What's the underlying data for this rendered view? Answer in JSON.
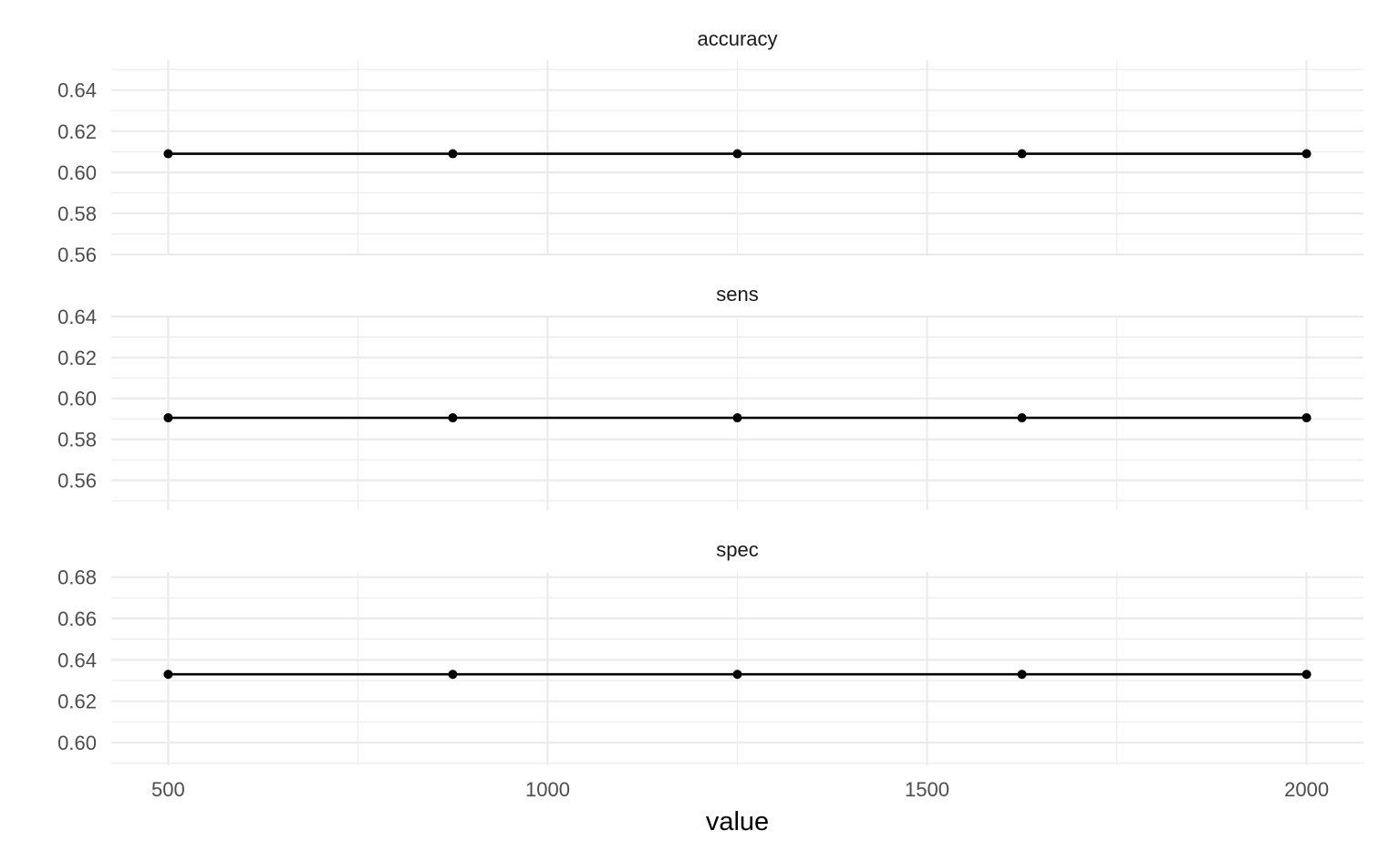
{
  "chart_data": {
    "type": "line",
    "xlabel": "value",
    "x_ticks": [
      500,
      1000,
      1500,
      2000
    ],
    "xlim": [
      425,
      2075
    ],
    "x": [
      500,
      875,
      1250,
      1625,
      2000
    ],
    "panels": [
      {
        "title": "accuracy",
        "y_ticks": [
          "0.56",
          "0.58",
          "0.60",
          "0.62",
          "0.64"
        ],
        "ylim": [
          0.56,
          0.6545
        ],
        "values": [
          0.609,
          0.609,
          0.609,
          0.609,
          0.609
        ]
      },
      {
        "title": "sens",
        "y_ticks": [
          "0.56",
          "0.58",
          "0.60",
          "0.62",
          "0.64"
        ],
        "ylim": [
          0.5455,
          0.64
        ],
        "values": [
          0.5905,
          0.5905,
          0.5905,
          0.5905,
          0.5905
        ]
      },
      {
        "title": "spec",
        "y_ticks": [
          "0.60",
          "0.62",
          "0.64",
          "0.66",
          "0.68"
        ],
        "ylim": [
          0.589,
          0.6825
        ],
        "values": [
          0.633,
          0.633,
          0.633,
          0.633,
          0.633
        ]
      }
    ],
    "grid": true,
    "legend": "none"
  }
}
